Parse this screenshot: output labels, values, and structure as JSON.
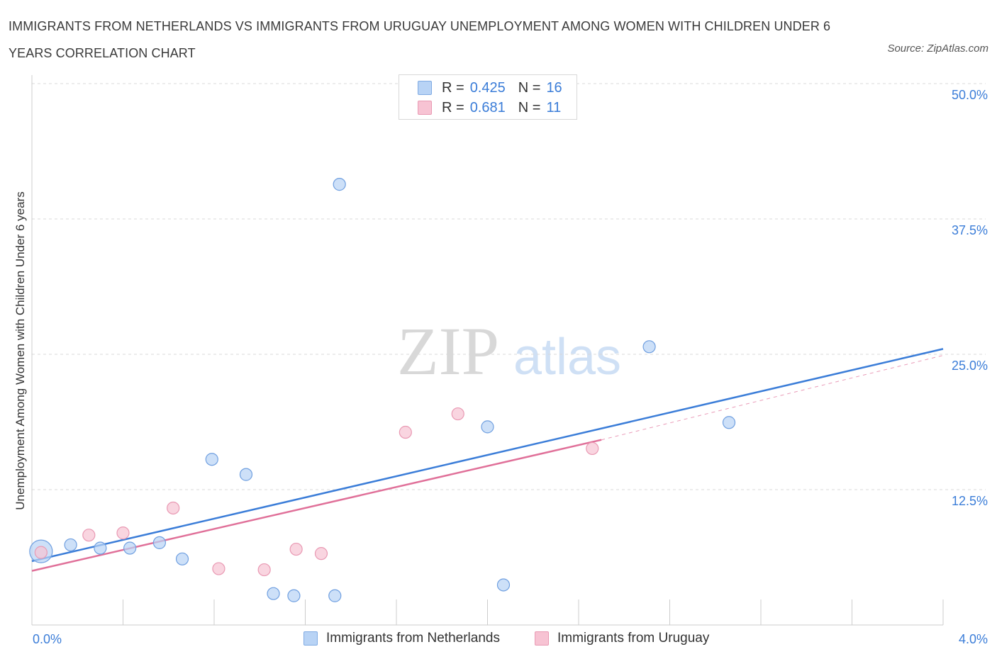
{
  "title": "IMMIGRANTS FROM NETHERLANDS VS IMMIGRANTS FROM URUGUAY UNEMPLOYMENT AMONG WOMEN WITH CHILDREN UNDER 6 YEARS CORRELATION CHART",
  "source": "Source: ZipAtlas.com",
  "watermark": {
    "zip": "ZIP",
    "atlas": "atlas"
  },
  "colors": {
    "blue": "#3b7dd8",
    "blue_fill": "#b8d3f5",
    "pink": "#e07099",
    "pink_fill": "#f7c3d3",
    "grid": "#d9d9d9"
  },
  "legend": {
    "rows": [
      {
        "r_label": "R =",
        "r_value": "0.425",
        "n_label": "N =",
        "n_value": "16"
      },
      {
        "r_label": "R =",
        "r_value": "0.681",
        "n_label": "N =",
        "n_value": "11"
      }
    ]
  },
  "bottom_legend": [
    "Immigrants from Netherlands",
    "Immigrants from Uruguay"
  ],
  "chart_data": {
    "type": "scatter",
    "title": "IMMIGRANTS FROM NETHERLANDS VS IMMIGRANTS FROM URUGUAY UNEMPLOYMENT AMONG WOMEN WITH CHILDREN UNDER 6 YEARS CORRELATION CHART",
    "xlabel": "",
    "ylabel": "Unemployment Among Women with Children Under 6 years",
    "xlim": [
      0,
      4.0
    ],
    "ylim": [
      0,
      50.0
    ],
    "x_tick_labels": [
      "0.0%",
      "4.0%"
    ],
    "y_ticks": [
      12.5,
      25.0,
      37.5,
      50.0
    ],
    "y_tick_labels": [
      "12.5%",
      "25.0%",
      "37.5%",
      "50.0%"
    ],
    "series": [
      {
        "name": "Immigrants from Netherlands",
        "color": "#3b7dd8",
        "points": [
          {
            "x": 0.04,
            "y": 6.8,
            "large": true
          },
          {
            "x": 0.17,
            "y": 7.4
          },
          {
            "x": 0.3,
            "y": 7.1
          },
          {
            "x": 0.43,
            "y": 7.1
          },
          {
            "x": 0.56,
            "y": 7.6
          },
          {
            "x": 0.66,
            "y": 6.1
          },
          {
            "x": 0.79,
            "y": 15.3
          },
          {
            "x": 0.94,
            "y": 13.9
          },
          {
            "x": 1.06,
            "y": 2.9
          },
          {
            "x": 1.15,
            "y": 2.7
          },
          {
            "x": 1.33,
            "y": 2.7
          },
          {
            "x": 1.35,
            "y": 40.7
          },
          {
            "x": 2.0,
            "y": 18.3
          },
          {
            "x": 2.07,
            "y": 3.7
          },
          {
            "x": 2.71,
            "y": 25.7
          },
          {
            "x": 3.06,
            "y": 18.7
          }
        ],
        "trend": {
          "x0": 0.0,
          "y0": 5.9,
          "x1": 4.0,
          "y1": 25.5
        }
      },
      {
        "name": "Immigrants from Uruguay",
        "color": "#e07099",
        "points": [
          {
            "x": 0.04,
            "y": 6.7
          },
          {
            "x": 0.25,
            "y": 8.3
          },
          {
            "x": 0.4,
            "y": 8.5
          },
          {
            "x": 0.62,
            "y": 10.8
          },
          {
            "x": 0.82,
            "y": 5.2
          },
          {
            "x": 1.02,
            "y": 5.1
          },
          {
            "x": 1.16,
            "y": 7.0
          },
          {
            "x": 1.27,
            "y": 6.6
          },
          {
            "x": 1.64,
            "y": 17.8
          },
          {
            "x": 1.87,
            "y": 19.5
          },
          {
            "x": 2.46,
            "y": 16.3
          }
        ],
        "trend": {
          "x0": 0.0,
          "y0": 5.0,
          "x1": 2.5,
          "y1": 17.1
        },
        "trend_extension": {
          "x0": 2.5,
          "y0": 17.1,
          "x1": 4.0,
          "y1": 24.9
        }
      }
    ]
  }
}
